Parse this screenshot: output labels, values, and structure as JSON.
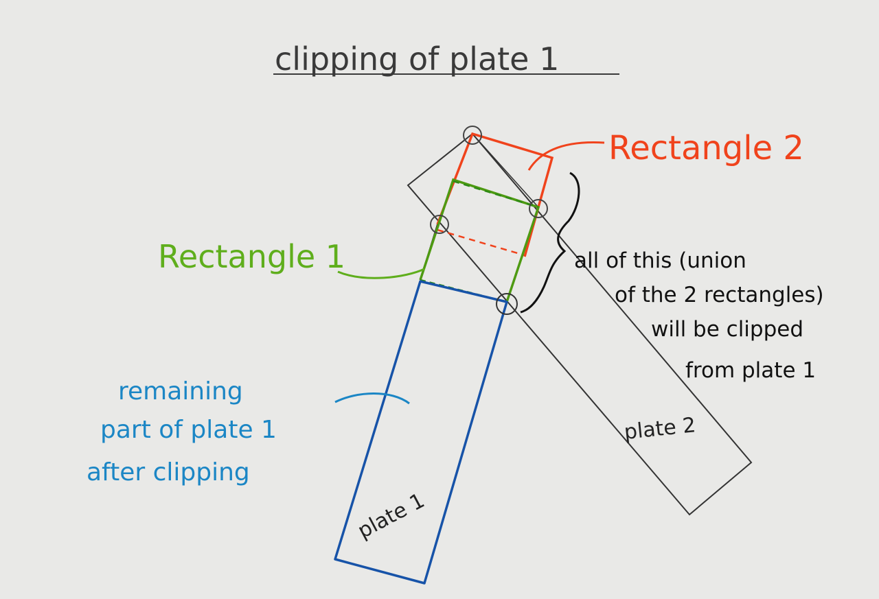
{
  "title": "clipping of plate 1",
  "labels": {
    "rectangle2": "Rectangle 2",
    "rectangle1": "Rectangle 1",
    "union_note": [
      "all of this (union",
      "of the 2 rectangles)",
      "will be clipped",
      "from plate 1"
    ],
    "remaining_note": [
      "remaining",
      "part of plate 1",
      "after clipping"
    ],
    "plate1": "plate 1",
    "plate2": "plate 2"
  },
  "colors": {
    "rectangle2": "#f0431c",
    "rectangle1": "#4e9a12",
    "plate1_remaining": "#1753a8",
    "plate_outline": "#222222",
    "annotation_blue": "#1b86c5"
  }
}
